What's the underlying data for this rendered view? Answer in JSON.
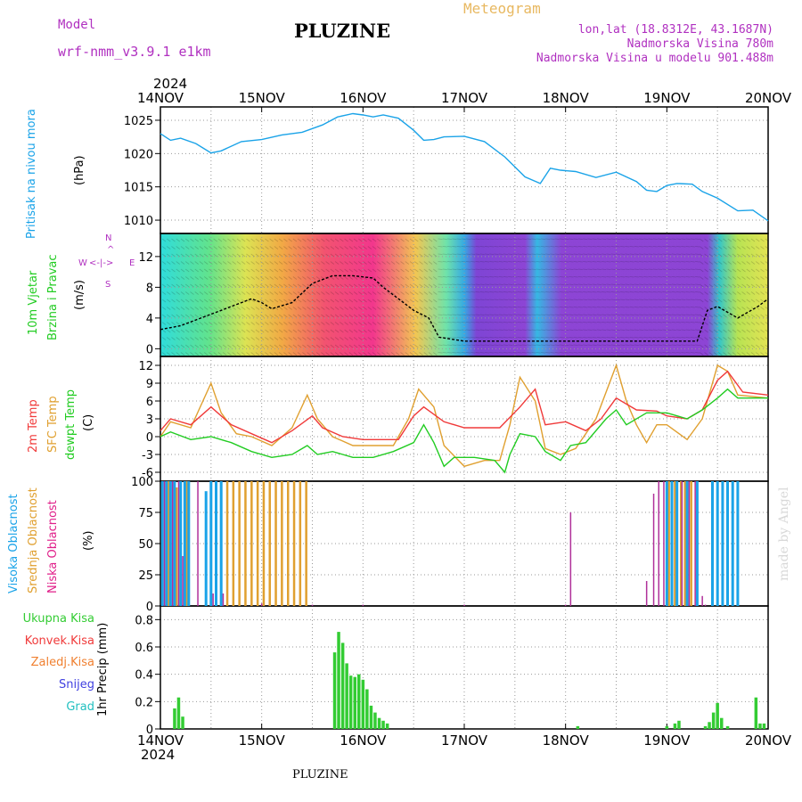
{
  "header": {
    "model_label": "Model",
    "model_name": "wrf-nmm_v3.9.1  e1km",
    "station": "PLUZINE",
    "meteogram": "Meteogram",
    "lonlat": "lon,lat (18.8312E, 43.1687N)",
    "altitude": "Nadmorska Visina 780m",
    "model_altitude": "Nadmorska Visina u modelu 901.488m",
    "year_top": "2024",
    "year_bottom": "2024",
    "footer": "PLUZINE",
    "credit": "made by Angel"
  },
  "colors": {
    "pressure": "#1aa3e8",
    "wind_speed": "#000000",
    "temp2m": "#f03a3a",
    "sfc_temp": "#e0a030",
    "dewpoint": "#22cc22",
    "high_cloud": "#1aa3e8",
    "mid_cloud": "#e0a030",
    "low_cloud": "#b0309a",
    "total_precip": "#33cc33",
    "conv_precip": "#f03a3a",
    "strat_precip": "#f08030",
    "snow": "#4040e0",
    "graupel": "#22c0c0",
    "model_label": "#b030c0",
    "info": "#b030c0",
    "meteogram": "#e8b860"
  },
  "time_axis": {
    "labels": [
      "14NOV",
      "15NOV",
      "16NOV",
      "17NOV",
      "18NOV",
      "19NOV",
      "20NOV"
    ]
  },
  "chart_data": [
    {
      "type": "line",
      "name": "pressure",
      "ylabel": "(hPa)",
      "side_labels": [
        "Pritisak na nivou mora"
      ],
      "yticks": [
        1010,
        1015,
        1020,
        1025
      ],
      "ylim": [
        1008,
        1027
      ],
      "series": [
        {
          "name": "Pritisak",
          "x_days": [
            0,
            0.1,
            0.2,
            0.35,
            0.5,
            0.6,
            0.8,
            1.0,
            1.2,
            1.4,
            1.6,
            1.75,
            1.9,
            2.0,
            2.1,
            2.2,
            2.35,
            2.5,
            2.6,
            2.7,
            2.8,
            3.0,
            3.2,
            3.4,
            3.6,
            3.75,
            3.85,
            3.95,
            4.1,
            4.3,
            4.5,
            4.7,
            4.8,
            4.9,
            5.0,
            5.1,
            5.25,
            5.35,
            5.5,
            5.7,
            5.85,
            6.0
          ],
          "values": [
            1023,
            1022,
            1022.3,
            1021.5,
            1020.1,
            1020.4,
            1021.8,
            1022.1,
            1022.8,
            1023.2,
            1024.3,
            1025.5,
            1026,
            1025.8,
            1025.5,
            1025.8,
            1025.3,
            1023.5,
            1022,
            1022.1,
            1022.5,
            1022.6,
            1021.8,
            1019.5,
            1016.5,
            1015.5,
            1017.8,
            1017.5,
            1017.3,
            1016.4,
            1017.2,
            1015.8,
            1014.5,
            1014.3,
            1015.2,
            1015.5,
            1015.4,
            1014.3,
            1013.3,
            1011.4,
            1011.5,
            1009.9
          ]
        }
      ]
    },
    {
      "type": "line",
      "name": "wind",
      "ylabel": "(m/s)",
      "side_labels": [
        "10m Vjetar",
        "Brzina i Pravac"
      ],
      "direction_legend": [
        "W",
        "<-|->",
        "E",
        "N",
        "^",
        "S"
      ],
      "yticks": [
        0,
        4,
        8,
        12
      ],
      "ylim": [
        -1,
        15
      ],
      "series": [
        {
          "name": "Brzina",
          "x_days": [
            0,
            0.2,
            0.4,
            0.5,
            0.6,
            0.7,
            0.8,
            0.9,
            1.0,
            1.1,
            1.3,
            1.5,
            1.7,
            1.9,
            2.1,
            2.2,
            2.4,
            2.5,
            2.65,
            2.75,
            3.0,
            3.5,
            4.0,
            4.5,
            5.0,
            5.2,
            5.3,
            5.4,
            5.5,
            5.7,
            5.9,
            6.0
          ],
          "values": [
            2.5,
            3,
            4,
            4.5,
            5,
            5.5,
            6,
            6.5,
            6,
            5.2,
            6,
            8.5,
            9.5,
            9.5,
            9.2,
            8,
            6,
            5,
            4,
            1.5,
            1,
            1,
            1,
            1,
            1,
            1,
            1,
            5,
            5.5,
            4,
            5.5,
            6.5
          ]
        }
      ]
    },
    {
      "type": "line",
      "name": "temperature",
      "ylabel": "(C)",
      "side_labels": [
        "2m Temp",
        "SFC Temp",
        "dewpt Temp"
      ],
      "yticks": [
        -6,
        -3,
        0,
        3,
        6,
        9,
        12
      ],
      "ylim": [
        -7.5,
        13.5
      ],
      "series": [
        {
          "name": "2m Temp",
          "x_days": [
            0,
            0.1,
            0.3,
            0.5,
            0.7,
            0.9,
            1.1,
            1.3,
            1.5,
            1.6,
            1.8,
            2.0,
            2.2,
            2.35,
            2.5,
            2.6,
            2.8,
            3.0,
            3.2,
            3.35,
            3.55,
            3.7,
            3.8,
            4.0,
            4.2,
            4.35,
            4.5,
            4.7,
            4.9,
            5.0,
            5.2,
            5.35,
            5.5,
            5.6,
            5.75,
            6.0
          ],
          "values": [
            1,
            3,
            2,
            5,
            2,
            0.5,
            -1,
            1,
            3.5,
            1.5,
            0,
            -0.5,
            -0.5,
            -0.5,
            3.5,
            5,
            2.5,
            1.5,
            1.5,
            1.5,
            5,
            8,
            2,
            2.5,
            1,
            3,
            6.5,
            4.5,
            4.3,
            3.5,
            3,
            4.5,
            9.5,
            11,
            7.5,
            7
          ]
        },
        {
          "name": "SFC Temp",
          "x_days": [
            0,
            0.1,
            0.3,
            0.5,
            0.6,
            0.75,
            0.9,
            1.1,
            1.3,
            1.45,
            1.55,
            1.7,
            1.9,
            2.1,
            2.3,
            2.45,
            2.55,
            2.7,
            2.8,
            3.0,
            3.2,
            3.35,
            3.45,
            3.55,
            3.7,
            3.8,
            3.95,
            4.1,
            4.3,
            4.5,
            4.6,
            4.7,
            4.8,
            4.9,
            5.0,
            5.2,
            5.35,
            5.5,
            5.6,
            5.7,
            6.0
          ],
          "values": [
            0,
            2.5,
            1.5,
            9,
            4,
            0.5,
            0,
            -1.5,
            1.5,
            7,
            3,
            0,
            -1.5,
            -1.5,
            -1.5,
            3,
            8,
            5,
            -1.5,
            -5,
            -4,
            -4,
            2,
            10,
            6,
            -2,
            -3,
            -2,
            3,
            12,
            6,
            2,
            -1,
            2,
            2,
            -0.5,
            3,
            12,
            11,
            7,
            6.5
          ]
        },
        {
          "name": "dewpt Temp",
          "x_days": [
            0,
            0.1,
            0.3,
            0.5,
            0.7,
            0.9,
            1.1,
            1.3,
            1.45,
            1.55,
            1.7,
            1.9,
            2.1,
            2.3,
            2.5,
            2.6,
            2.7,
            2.8,
            2.9,
            3.1,
            3.3,
            3.4,
            3.45,
            3.55,
            3.7,
            3.8,
            3.95,
            4.05,
            4.2,
            4.4,
            4.5,
            4.6,
            4.8,
            5.0,
            5.2,
            5.35,
            5.5,
            5.6,
            5.7,
            6.0
          ],
          "values": [
            0,
            0.8,
            -0.5,
            0,
            -1,
            -2.5,
            -3.5,
            -3,
            -1.5,
            -3,
            -2.5,
            -3.5,
            -3.5,
            -2.5,
            -1,
            2,
            -1,
            -5,
            -3.5,
            -3.5,
            -4,
            -6,
            -3,
            0.5,
            0,
            -2.5,
            -4,
            -1.5,
            -1,
            3,
            4.5,
            2,
            4,
            4,
            3,
            4.5,
            6.5,
            8,
            6.5,
            6.5
          ]
        }
      ]
    },
    {
      "type": "bar",
      "name": "cloud_cover",
      "ylabel": "(%)",
      "side_labels": [
        "Visoka Oblacnost",
        "Srednja Oblacnost",
        "Niska Oblacnost"
      ],
      "yticks": [
        0,
        25,
        50,
        75,
        100
      ],
      "ylim": [
        0,
        100
      ],
      "series": [
        {
          "name": "Visoka Oblacnost",
          "x_days": [
            0.02,
            0.06,
            0.1,
            0.14,
            0.2,
            0.24,
            0.28,
            0.45,
            0.5,
            0.55,
            0.6,
            5.0,
            5.05,
            5.1,
            5.2,
            5.3,
            5.45,
            5.5,
            5.55,
            5.6,
            5.65,
            5.7
          ],
          "values": [
            100,
            100,
            100,
            100,
            100,
            100,
            100,
            92,
            100,
            100,
            100,
            100,
            100,
            100,
            100,
            100,
            100,
            100,
            100,
            100,
            100,
            100
          ]
        },
        {
          "name": "Srednja Oblacnost",
          "x_days": [
            0.08,
            0.16,
            0.26,
            0.5,
            0.55,
            0.6,
            0.66,
            0.72,
            0.78,
            0.84,
            0.9,
            0.96,
            1.02,
            1.08,
            1.14,
            1.2,
            1.26,
            1.32,
            1.38,
            1.44,
            5.02,
            5.08,
            5.14,
            5.18,
            5.24
          ],
          "values": [
            100,
            95,
            100,
            100,
            100,
            100,
            100,
            100,
            100,
            100,
            100,
            100,
            100,
            100,
            100,
            100,
            100,
            100,
            100,
            100,
            100,
            100,
            100,
            100,
            100
          ]
        },
        {
          "name": "Niska Oblacnost",
          "x_days": [
            0.04,
            0.12,
            0.18,
            0.22,
            0.37,
            0.52,
            0.62,
            1.0,
            1.5,
            2.0,
            3.0,
            4.0,
            4.05,
            4.8,
            4.87,
            4.92,
            4.97,
            5.15,
            5.22,
            5.28,
            5.35,
            5.38
          ],
          "values": [
            100,
            100,
            100,
            40,
            100,
            10,
            10,
            2,
            1,
            1,
            1,
            1,
            75,
            20,
            90,
            100,
            100,
            100,
            100,
            100,
            8,
            1
          ]
        }
      ]
    },
    {
      "type": "bar",
      "name": "precipitation",
      "ylabel": "1hr Precip (mm)",
      "side_labels": [
        "Ukupna Kisa",
        "Konvek.Kisa",
        "Zaledj.Kisa",
        "Snijeg",
        "Grad"
      ],
      "yticks": [
        0,
        0.2,
        0.4,
        0.6,
        0.8
      ],
      "ylim": [
        0,
        0.9
      ],
      "series": [
        {
          "name": "Ukupna Kisa",
          "x_days": [
            0.14,
            0.18,
            0.22,
            1.72,
            1.76,
            1.8,
            1.84,
            1.88,
            1.92,
            1.96,
            2.0,
            2.04,
            2.08,
            2.12,
            2.16,
            2.2,
            2.24,
            4.12,
            5.0,
            5.08,
            5.12,
            5.38,
            5.42,
            5.46,
            5.5,
            5.54,
            5.6,
            5.88,
            5.92,
            5.96
          ],
          "values": [
            0.15,
            0.23,
            0.09,
            0.56,
            0.71,
            0.63,
            0.48,
            0.39,
            0.38,
            0.4,
            0.36,
            0.29,
            0.17,
            0.12,
            0.08,
            0.06,
            0.04,
            0.02,
            0.02,
            0.04,
            0.06,
            0.02,
            0.05,
            0.12,
            0.19,
            0.08,
            0.02,
            0.23,
            0.04,
            0.04
          ]
        }
      ]
    }
  ]
}
